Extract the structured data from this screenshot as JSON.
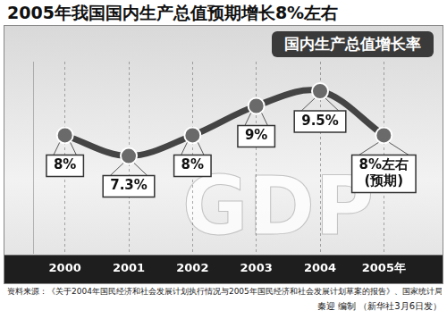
{
  "chart_data": {
    "type": "line",
    "title": "2005年我国国内生产总值预期增长8%左右",
    "subtitle": "国内生产总值增长率",
    "categories": [
      "2000",
      "2001",
      "2002",
      "2003",
      "2004",
      "2005年"
    ],
    "values": [
      8,
      7.3,
      8,
      9,
      9.5,
      8
    ],
    "value_labels": [
      "8%",
      "7.3%",
      "8%",
      "9%",
      "9.5%",
      "8%左右(预期)"
    ],
    "data_labels": true,
    "color": "#444444",
    "ylim": [
      4,
      10.5
    ],
    "grid": true,
    "tick_labels": "x",
    "annotations": [
      "GDP"
    ],
    "source": "资料来源：《关于2004年国民经济和社会发展计划执行情况与2005年国民经济和社会发展计划草案的报告》、国家统计局",
    "credit": "秦迎 编制 （新华社3月6日发）"
  }
}
